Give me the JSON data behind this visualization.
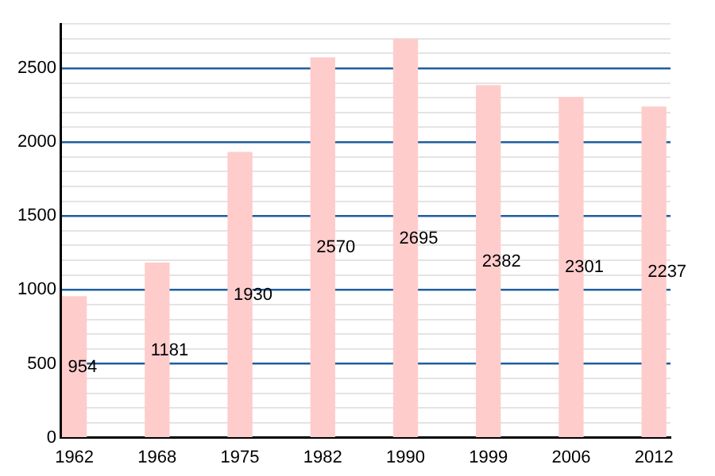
{
  "chart_data": {
    "type": "bar",
    "categories": [
      "1962",
      "1968",
      "1975",
      "1982",
      "1990",
      "1999",
      "2006",
      "2012"
    ],
    "values": [
      954,
      1181,
      1930,
      2570,
      2695,
      2382,
      2301,
      2237
    ],
    "color": "#ffcccc",
    "ylim": [
      0,
      2800
    ],
    "yticks": [
      0,
      {
        "value": 100,
        "label": null
      },
      {
        "value": 200,
        "label": null
      },
      {
        "value": 300,
        "label": null
      },
      {
        "value": 400,
        "label": null
      },
      500,
      {
        "value": 600,
        "label": null
      },
      {
        "value": 700,
        "label": null
      },
      {
        "value": 800,
        "label": null
      },
      {
        "value": 900,
        "label": null
      },
      1000,
      {
        "value": 1100,
        "label": null
      },
      {
        "value": 1200,
        "label": null
      },
      {
        "value": 1300,
        "label": null
      },
      {
        "value": 1400,
        "label": null
      },
      1500,
      {
        "value": 1600,
        "label": null
      },
      {
        "value": 1700,
        "label": null
      },
      {
        "value": 1800,
        "label": null
      },
      {
        "value": 1900,
        "label": null
      },
      2000,
      {
        "value": 2100,
        "label": null
      },
      {
        "value": 2200,
        "label": null
      },
      {
        "value": 2300,
        "label": null
      },
      {
        "value": 2400,
        "label": null
      },
      2500,
      {
        "value": 2600,
        "label": null
      },
      {
        "value": 2700,
        "label": null
      },
      {
        "value": 2800,
        "label": null
      }
    ],
    "grid": "y",
    "data_labels": true
  }
}
